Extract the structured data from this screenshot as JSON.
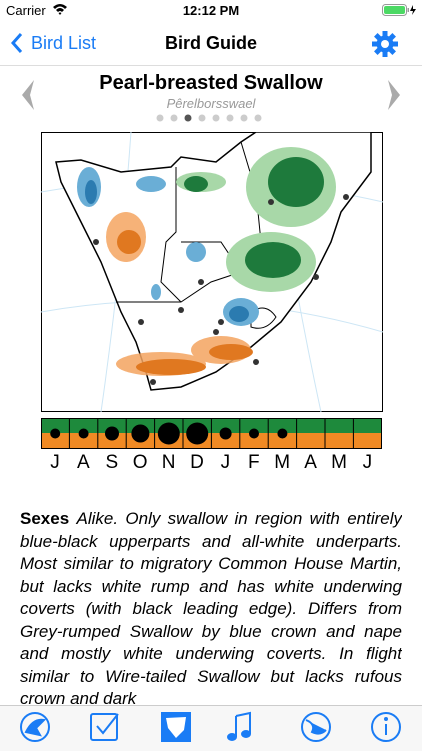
{
  "status_bar": {
    "carrier": "Carrier",
    "time": "12:12 PM"
  },
  "nav": {
    "back": "Bird List",
    "title": "Bird Guide"
  },
  "species": {
    "name": "Pearl-breasted Swallow",
    "local_name": "Pêrelborsswael"
  },
  "months": [
    "J",
    "A",
    "S",
    "O",
    "N",
    "D",
    "J",
    "F",
    "M",
    "A",
    "M",
    "J"
  ],
  "description": {
    "heading": "Sexes",
    "text": "Alike. Only swallow in region with entirely blue-black upperparts and all-white underparts. Most similar to migratory Common House Martin, but lacks white rump and has white underwing coverts (with black leading edge). Differs from Grey-rumped Swallow by blue crown and nape and mostly white underwing coverts. In flight similar to Wire-tailed Swallow but lacks rufous crown and dark"
  }
}
